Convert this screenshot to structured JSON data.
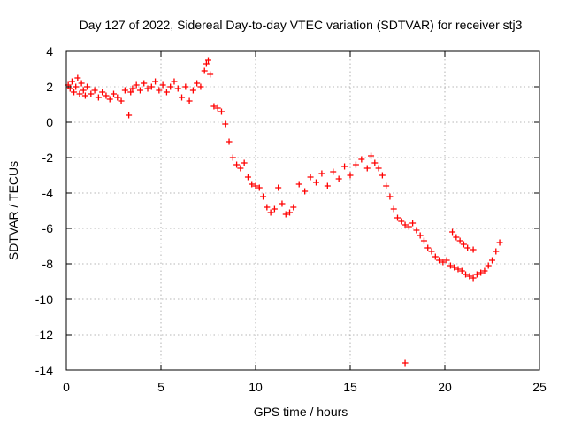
{
  "chart_data": {
    "type": "scatter",
    "title": "Day 127 of 2022, Sidereal Day-to-day VTEC variation (SDTVAR) for receiver stj3",
    "xlabel": "GPS time / hours",
    "ylabel": "SDTVAR / TECUs",
    "xlim": [
      0,
      25
    ],
    "ylim": [
      -14,
      4
    ],
    "xticks": [
      0,
      5,
      10,
      15,
      20,
      25
    ],
    "yticks": [
      -14,
      -12,
      -10,
      -8,
      -6,
      -4,
      -2,
      0,
      2,
      4
    ],
    "grid": true,
    "marker": "+",
    "marker_color": "#ff0000",
    "series": [
      {
        "name": "stj3",
        "x": [
          0.1,
          0.2,
          0.3,
          0.4,
          0.5,
          0.6,
          0.7,
          0.8,
          0.9,
          1.0,
          1.1,
          1.3,
          1.5,
          1.7,
          1.9,
          2.1,
          2.3,
          2.5,
          2.7,
          2.9,
          3.1,
          3.3,
          3.4,
          3.5,
          3.7,
          3.9,
          4.1,
          4.3,
          4.5,
          4.7,
          4.9,
          5.1,
          5.3,
          5.5,
          5.7,
          5.9,
          6.1,
          6.3,
          6.5,
          6.7,
          6.9,
          7.1,
          7.3,
          7.4,
          7.5,
          7.6,
          7.8,
          8.0,
          8.2,
          8.4,
          8.6,
          8.8,
          9.0,
          9.2,
          9.4,
          9.6,
          9.8,
          10.0,
          10.2,
          10.4,
          10.6,
          10.8,
          11.0,
          11.2,
          11.4,
          11.6,
          11.8,
          12.0,
          12.3,
          12.6,
          12.9,
          13.2,
          13.5,
          13.8,
          14.1,
          14.4,
          14.7,
          15.0,
          15.3,
          15.6,
          15.9,
          16.1,
          16.3,
          16.5,
          16.7,
          16.9,
          17.1,
          17.3,
          17.5,
          17.7,
          17.9,
          18.1,
          18.3,
          18.5,
          18.7,
          18.9,
          19.1,
          19.3,
          19.5,
          19.7,
          19.9,
          20.1,
          20.3,
          20.5,
          20.7,
          20.9,
          21.1,
          21.3,
          21.5,
          21.7,
          21.9,
          22.1,
          22.3,
          22.5,
          22.7,
          22.9,
          17.9,
          20.4,
          20.6,
          20.8,
          21.0,
          21.2,
          21.5
        ],
        "y": [
          2.1,
          1.9,
          2.3,
          1.7,
          2.0,
          2.5,
          1.6,
          2.2,
          1.8,
          1.5,
          2.0,
          1.6,
          1.8,
          1.4,
          1.7,
          1.5,
          1.3,
          1.6,
          1.4,
          1.2,
          1.8,
          0.4,
          1.7,
          1.9,
          2.1,
          1.8,
          2.2,
          1.9,
          2.0,
          2.3,
          1.8,
          2.1,
          1.7,
          2.0,
          2.3,
          1.9,
          1.4,
          2.0,
          1.2,
          1.8,
          2.2,
          2.0,
          2.9,
          3.3,
          3.5,
          2.7,
          0.9,
          0.8,
          0.6,
          -0.1,
          -1.1,
          -2.0,
          -2.4,
          -2.6,
          -2.3,
          -3.1,
          -3.5,
          -3.6,
          -3.7,
          -4.2,
          -4.8,
          -5.1,
          -4.9,
          -3.7,
          -4.6,
          -5.2,
          -5.1,
          -4.8,
          -3.5,
          -3.9,
          -3.1,
          -3.4,
          -2.9,
          -3.6,
          -2.8,
          -3.2,
          -2.5,
          -3.0,
          -2.4,
          -2.1,
          -2.6,
          -1.9,
          -2.3,
          -2.6,
          -3.0,
          -3.6,
          -4.2,
          -4.9,
          -5.4,
          -5.6,
          -5.8,
          -5.9,
          -5.7,
          -6.1,
          -6.4,
          -6.7,
          -7.1,
          -7.3,
          -7.6,
          -7.8,
          -7.9,
          -7.8,
          -8.1,
          -8.2,
          -8.3,
          -8.4,
          -8.6,
          -8.7,
          -8.8,
          -8.6,
          -8.5,
          -8.4,
          -8.1,
          -7.8,
          -7.3,
          -6.8,
          -13.6,
          -6.2,
          -6.5,
          -6.7,
          -6.9,
          -7.1,
          -7.2
        ]
      }
    ]
  }
}
